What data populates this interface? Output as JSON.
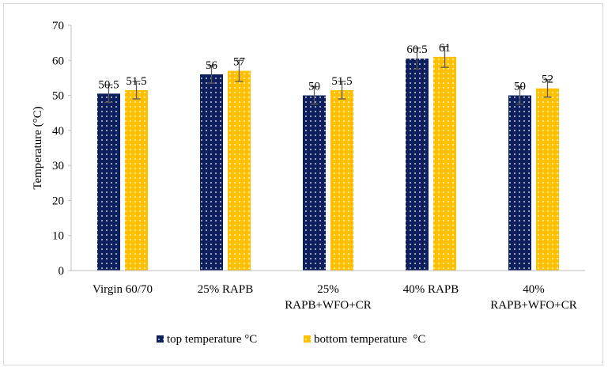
{
  "chart_data": {
    "type": "bar",
    "title": "",
    "xlabel": "",
    "ylabel": "Temperature (°C)",
    "ylim": [
      0,
      70
    ],
    "yticks": [
      0,
      10,
      20,
      30,
      40,
      50,
      60,
      70
    ],
    "grid": false,
    "legend_position": "bottom",
    "categories": [
      [
        "Virgin 60/70"
      ],
      [
        "25% RAPB"
      ],
      [
        "25%",
        "RAPB+WFO+CR"
      ],
      [
        "40% RAPB"
      ],
      [
        "40%",
        "RAPB+WFO+CR"
      ]
    ],
    "series": [
      {
        "name": "top temperature °C",
        "color": "#0d1f5c",
        "pattern": "white-dots",
        "values": [
          50.5,
          56,
          50,
          60.5,
          50
        ],
        "labels": [
          "50.5",
          "56",
          "50",
          "60.5",
          "50"
        ],
        "error": [
          2.5,
          2.5,
          2.5,
          3,
          2.5
        ]
      },
      {
        "name": "bottom temperature  °C",
        "color": "#ffc000",
        "pattern": "white-dots",
        "values": [
          51.5,
          57,
          51.5,
          61,
          52
        ],
        "labels": [
          "51.5",
          "57",
          "51.5",
          "61",
          "52"
        ],
        "error": [
          2.5,
          3,
          2.5,
          3,
          2.5
        ]
      }
    ]
  }
}
